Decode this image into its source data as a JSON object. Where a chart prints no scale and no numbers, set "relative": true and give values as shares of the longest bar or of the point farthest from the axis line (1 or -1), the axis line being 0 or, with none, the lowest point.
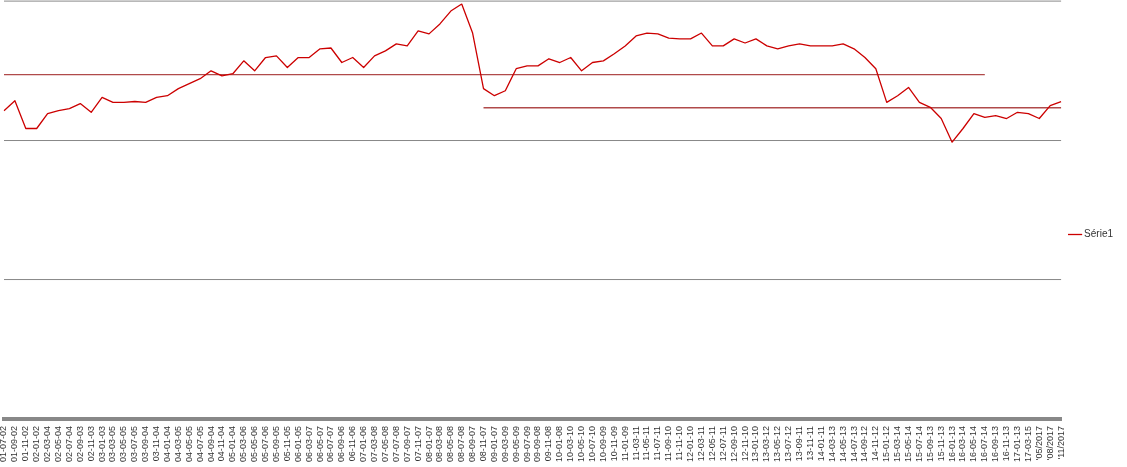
{
  "chart_data": {
    "type": "line",
    "relative": true,
    "legend": "right",
    "ref_lines": [
      {
        "axis": "y",
        "value": 0.336,
        "color": "#888888"
      },
      {
        "axis": "y",
        "value": 0.671,
        "color": "#888888"
      },
      {
        "axis": "y",
        "value": 1.007,
        "color": "#888888"
      }
    ],
    "marker": "none",
    "line_style": "solid",
    "categories": [
      "01-07-02",
      "01-09-02",
      "01-11-02",
      "02-01-02",
      "02-03-04",
      "02-05-04",
      "02-07-04",
      "02-09-03",
      "02-11-03",
      "03-01-03",
      "03-03-05",
      "03-05-05",
      "03-07-05",
      "03-09-04",
      "03-11-04",
      "04-01-04",
      "04-03-05",
      "04-05-05",
      "04-07-05",
      "04-09-04",
      "04-11-04",
      "05-01-04",
      "05-03-06",
      "05-05-06",
      "05-07-06",
      "05-09-05",
      "05-11-05",
      "06-01-05",
      "06-03-07",
      "06-05-07",
      "06-07-07",
      "06-09-06",
      "06-11-06",
      "07-01-06",
      "07-03-08",
      "07-05-08",
      "07-07-08",
      "07-09-07",
      "07-11-07",
      "08-01-07",
      "08-03-08",
      "08-05-08",
      "08-07-08",
      "08-09-07",
      "08-11-07",
      "09-01-07",
      "09-03-09",
      "09-05-09",
      "09-07-09",
      "09-09-08",
      "09-11-08",
      "10-01-08",
      "10-03-10",
      "10-05-10",
      "10-07-10",
      "10-09-09",
      "10-11-09",
      "11-01-09",
      "11-03-11",
      "11-05-11",
      "11-07-11",
      "11-09-10",
      "11-11-10",
      "12-01-10",
      "12-03-11",
      "12-05-11",
      "12-07-11",
      "12-09-10",
      "12-11-10",
      "13-01-10",
      "13-03-12",
      "13-05-12",
      "13-07-12",
      "13-09-11",
      "13-11-11",
      "14-01-11",
      "14-03-13",
      "14-05-13",
      "14-07-13",
      "14-09-12",
      "14-11-12",
      "15-01-12",
      "15-03-14",
      "15-05-14",
      "15-07-14",
      "15-09-13",
      "15-11-13",
      "16-01-13",
      "16-03-14",
      "16-05-14",
      "16-07-14",
      "16-09-13",
      "16-11-13",
      "17-01-13",
      "17-03-15",
      "'05/2017",
      "'08/2017",
      "'11/2017"
    ],
    "series": [
      {
        "name": "Série1",
        "color": "#cc0000",
        "values": [
          0.743,
          0.767,
          0.7,
          0.7,
          0.736,
          0.743,
          0.748,
          0.76,
          0.739,
          0.775,
          0.763,
          0.763,
          0.765,
          0.763,
          0.775,
          0.779,
          0.796,
          0.808,
          0.82,
          0.839,
          0.827,
          0.832,
          0.863,
          0.839,
          0.871,
          0.875,
          0.847,
          0.871,
          0.871,
          0.892,
          0.894,
          0.859,
          0.871,
          0.847,
          0.875,
          0.887,
          0.904,
          0.899,
          0.935,
          0.928,
          0.952,
          0.983,
          1,
          0.93,
          0.796,
          0.779,
          0.791,
          0.844,
          0.851,
          0.851,
          0.868,
          0.859,
          0.871,
          0.839,
          0.859,
          0.863,
          0.88,
          0.899,
          0.923,
          0.93,
          0.928,
          0.918,
          0.916,
          0.916,
          0.93,
          0.899,
          0.899,
          0.916,
          0.906,
          0.916,
          0.899,
          0.892,
          0.899,
          0.904,
          0.899,
          0.899,
          0.899,
          0.904,
          0.892,
          0.871,
          0.844,
          0.763,
          0.779,
          0.799,
          0.763,
          0.751,
          0.724,
          0.667,
          0.7,
          0.736,
          0.727,
          0.731,
          0.724,
          0.739,
          0.736,
          0.724,
          0.755,
          0.765
        ]
      },
      {
        "color": "#b04a4a",
        "values": [
          0.83,
          0.83,
          0.83,
          0.83,
          0.83,
          0.83,
          0.83,
          0.83,
          0.83,
          0.83,
          0.83,
          0.83,
          0.83,
          0.83,
          0.83,
          0.83,
          0.83,
          0.83,
          0.83,
          0.83,
          0.83,
          0.83,
          0.83,
          0.83,
          0.83,
          0.83,
          0.83,
          0.83,
          0.83,
          0.83,
          0.83,
          0.83,
          0.83,
          0.83,
          0.83,
          0.83,
          0.83,
          0.83,
          0.83,
          0.83,
          0.83,
          0.83,
          0.83,
          0.83,
          0.83,
          0.83,
          0.83,
          0.83,
          0.83,
          0.83,
          0.83,
          0.83,
          0.83,
          0.83,
          0.83,
          0.83,
          0.83,
          0.83,
          0.83,
          0.83,
          0.83,
          0.83,
          0.83,
          0.83,
          0.83,
          0.83,
          0.83,
          0.83,
          0.83,
          0.83,
          0.83,
          0.83,
          0.83,
          0.83,
          0.83,
          0.83,
          0.83,
          0.83,
          0.83,
          0.83,
          0.83,
          0.83,
          0.83,
          0.83,
          0.83,
          0.83,
          0.83,
          0.83,
          0.83,
          0.83,
          0.83,
          null,
          null,
          null,
          null,
          null,
          null,
          null
        ]
      },
      {
        "color": "#b04a4a",
        "values": [
          null,
          null,
          null,
          null,
          null,
          null,
          null,
          null,
          null,
          null,
          null,
          null,
          null,
          null,
          null,
          null,
          null,
          null,
          null,
          null,
          null,
          null,
          null,
          null,
          null,
          null,
          null,
          null,
          null,
          null,
          null,
          null,
          null,
          null,
          null,
          null,
          null,
          null,
          null,
          null,
          null,
          null,
          null,
          null,
          0.75,
          0.75,
          0.75,
          0.75,
          0.75,
          0.75,
          0.75,
          0.75,
          0.75,
          0.75,
          0.75,
          0.75,
          0.75,
          0.75,
          0.75,
          0.75,
          0.75,
          0.75,
          0.75,
          0.75,
          0.75,
          0.75,
          0.75,
          0.75,
          0.75,
          0.75,
          0.75,
          0.75,
          0.75,
          0.75,
          0.75,
          0.75,
          0.75,
          0.75,
          0.75,
          0.75,
          0.75,
          0.75,
          0.75,
          0.75,
          0.75,
          0.75,
          0.75,
          0.75,
          0.75,
          0.75,
          0.75,
          0.75,
          0.75,
          0.75,
          0.75,
          0.75,
          0.75,
          0.75
        ]
      }
    ]
  }
}
